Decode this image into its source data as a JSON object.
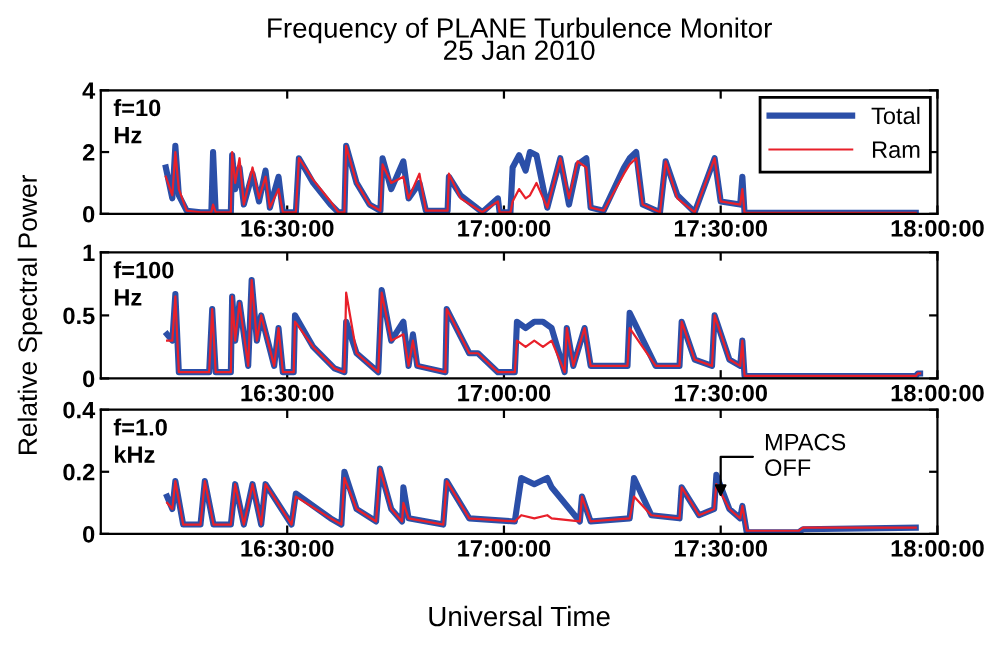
{
  "chart_data": [
    {
      "type": "line",
      "title": "Frequency of PLANE Turbulence Monitor",
      "subtitle": "25 Jan 2010",
      "annotations": [
        "f=10\nHz"
      ],
      "legend": "top right",
      "xlim": [
        16.07,
        18.0
      ],
      "ylim": [
        0,
        4
      ],
      "yticks": [
        0,
        2,
        4
      ],
      "xticks": [
        {
          "value": 16.5,
          "label": "16:30:00"
        },
        {
          "value": 17.0,
          "label": "17:00:00"
        },
        {
          "value": 17.5,
          "label": "17:30:00"
        },
        {
          "value": 18.0,
          "label": "18:00:00"
        }
      ],
      "x": [
        16.22,
        16.235,
        16.242,
        16.25,
        16.268,
        16.3,
        16.325,
        16.329,
        16.335,
        16.37,
        16.373,
        16.38,
        16.39,
        16.4,
        16.42,
        16.435,
        16.45,
        16.46,
        16.48,
        16.49,
        16.52,
        16.527,
        16.56,
        16.6,
        16.618,
        16.632,
        16.636,
        16.66,
        16.69,
        16.715,
        16.72,
        16.74,
        16.768,
        16.78,
        16.805,
        16.82,
        16.87,
        16.873,
        16.9,
        16.95,
        16.986,
        16.99,
        17.015,
        17.02,
        17.035,
        17.05,
        17.06,
        17.075,
        17.1,
        17.13,
        17.15,
        17.17,
        17.19,
        17.2,
        17.23,
        17.277,
        17.29,
        17.305,
        17.32,
        17.36,
        17.373,
        17.4,
        17.44,
        17.486,
        17.5,
        17.545,
        17.55,
        17.555,
        17.95
      ],
      "series": [
        {
          "name": "Total",
          "color": "#2b4fa8",
          "values": [
            1.5,
            0.5,
            2.2,
            0.6,
            0.1,
            0.05,
            0.05,
            2.0,
            0.05,
            0.05,
            1.9,
            0.8,
            1.5,
            0.3,
            1.3,
            0.4,
            1.4,
            0.2,
            1.2,
            0.05,
            0.05,
            1.8,
            1.0,
            0.3,
            0.05,
            0.05,
            2.2,
            1.0,
            0.3,
            0.1,
            1.8,
            0.8,
            1.7,
            0.5,
            1.0,
            0.1,
            0.1,
            1.2,
            0.6,
            0.05,
            0.5,
            0.05,
            0.05,
            1.5,
            1.9,
            1.4,
            2.0,
            1.9,
            0.2,
            1.8,
            0.3,
            1.6,
            1.8,
            0.2,
            0.1,
            1.5,
            1.8,
            2.0,
            0.3,
            0.05,
            1.7,
            0.6,
            0.05,
            1.8,
            0.4,
            0.3,
            1.2,
            0.03,
            0.03
          ]
        },
        {
          "name": "Ram",
          "color": "#e8202a",
          "values": [
            1.2,
            0.6,
            2.0,
            0.8,
            0.1,
            0.05,
            0.05,
            0.3,
            0.05,
            0.05,
            2.0,
            1.0,
            1.8,
            0.3,
            1.5,
            0.5,
            1.2,
            0.2,
            0.8,
            0.05,
            0.05,
            1.8,
            1.1,
            0.4,
            0.05,
            0.05,
            2.2,
            1.0,
            0.3,
            0.1,
            1.6,
            1.0,
            1.2,
            0.5,
            1.3,
            0.1,
            0.1,
            1.3,
            0.5,
            0.05,
            0.4,
            0.05,
            0.05,
            0.4,
            0.8,
            0.5,
            0.6,
            1.0,
            0.2,
            1.8,
            0.5,
            1.7,
            1.5,
            0.2,
            0.1,
            1.3,
            1.6,
            1.8,
            0.3,
            0.05,
            1.7,
            0.5,
            0.05,
            1.8,
            0.4,
            0.3,
            0.8,
            0.03,
            0.03
          ]
        }
      ]
    },
    {
      "type": "line",
      "ylabel": "Relative Spectral Power",
      "annotations": [
        "f=100\nHz"
      ],
      "xlim": [
        16.07,
        18.0
      ],
      "ylim": [
        0,
        1
      ],
      "yticks": [
        0,
        0.5,
        1
      ],
      "xticks": [
        {
          "value": 16.5,
          "label": "16:30:00"
        },
        {
          "value": 17.0,
          "label": "17:00:00"
        },
        {
          "value": 17.5,
          "label": "17:30:00"
        },
        {
          "value": 18.0,
          "label": "18:00:00"
        }
      ],
      "x": [
        16.223,
        16.235,
        16.242,
        16.25,
        16.32,
        16.327,
        16.335,
        16.37,
        16.373,
        16.38,
        16.39,
        16.41,
        16.418,
        16.43,
        16.44,
        16.47,
        16.48,
        16.49,
        16.515,
        16.518,
        16.56,
        16.609,
        16.632,
        16.636,
        16.66,
        16.71,
        16.718,
        16.74,
        16.768,
        16.78,
        16.79,
        16.8,
        16.865,
        16.868,
        16.92,
        16.94,
        16.986,
        17.025,
        17.03,
        17.05,
        17.07,
        17.09,
        17.11,
        17.14,
        17.145,
        17.16,
        17.186,
        17.2,
        17.285,
        17.29,
        17.35,
        17.405,
        17.41,
        17.44,
        17.48,
        17.486,
        17.52,
        17.545,
        17.55,
        17.555,
        17.95,
        17.955,
        17.96
      ],
      "series": [
        {
          "color": "#2b4fa8",
          "values": [
            0.35,
            0.3,
            0.67,
            0.05,
            0.05,
            0.55,
            0.05,
            0.05,
            0.65,
            0.3,
            0.6,
            0.1,
            0.78,
            0.3,
            0.5,
            0.1,
            0.4,
            0.05,
            0.05,
            0.5,
            0.25,
            0.08,
            0.05,
            0.45,
            0.2,
            0.05,
            0.7,
            0.3,
            0.45,
            0.1,
            0.35,
            0.1,
            0.05,
            0.55,
            0.2,
            0.2,
            0.05,
            0.05,
            0.45,
            0.4,
            0.45,
            0.45,
            0.4,
            0.05,
            0.4,
            0.1,
            0.4,
            0.1,
            0.1,
            0.52,
            0.1,
            0.1,
            0.45,
            0.15,
            0.1,
            0.5,
            0.15,
            0.1,
            0.3,
            0.02,
            0.02,
            0.04,
            0.04
          ]
        },
        {
          "color": "#e8202a",
          "values": [
            0.3,
            0.3,
            0.65,
            0.05,
            0.05,
            0.55,
            0.05,
            0.05,
            0.65,
            0.3,
            0.6,
            0.1,
            0.78,
            0.3,
            0.5,
            0.1,
            0.4,
            0.05,
            0.05,
            0.45,
            0.25,
            0.08,
            0.05,
            0.68,
            0.2,
            0.05,
            0.68,
            0.3,
            0.35,
            0.1,
            0.3,
            0.1,
            0.05,
            0.55,
            0.2,
            0.2,
            0.05,
            0.05,
            0.3,
            0.25,
            0.3,
            0.25,
            0.3,
            0.05,
            0.4,
            0.1,
            0.4,
            0.1,
            0.1,
            0.4,
            0.1,
            0.1,
            0.45,
            0.15,
            0.1,
            0.5,
            0.15,
            0.1,
            0.3,
            0.02,
            0.02,
            0.04,
            0.04
          ]
        }
      ]
    },
    {
      "type": "line",
      "xlabel": "Universal Time",
      "annotations": [
        "f=1.0\nkHz",
        {
          "text": "MPACS\nOFF",
          "x": 17.5,
          "y": 0.1
        }
      ],
      "xlim": [
        16.07,
        18.0
      ],
      "ylim": [
        0,
        0.4
      ],
      "yticks": [
        0,
        0.2,
        0.4
      ],
      "xticks": [
        {
          "value": 16.5,
          "label": "16:30:00"
        },
        {
          "value": 17.0,
          "label": "17:00:00"
        },
        {
          "value": 17.5,
          "label": "17:30:00"
        },
        {
          "value": 18.0,
          "label": "18:00:00"
        }
      ],
      "x": [
        16.223,
        16.235,
        16.242,
        16.26,
        16.3,
        16.31,
        16.33,
        16.37,
        16.38,
        16.4,
        16.42,
        16.44,
        16.45,
        16.51,
        16.52,
        16.6,
        16.625,
        16.632,
        16.66,
        16.705,
        16.714,
        16.74,
        16.765,
        16.768,
        16.78,
        16.86,
        16.868,
        16.92,
        17.025,
        17.04,
        17.07,
        17.1,
        17.11,
        17.175,
        17.18,
        17.2,
        17.29,
        17.3,
        17.34,
        17.405,
        17.41,
        17.45,
        17.485,
        17.49,
        17.52,
        17.545,
        17.55,
        17.56,
        17.68,
        17.69,
        17.95
      ],
      "series": [
        {
          "color": "#2b4fa8",
          "values": [
            0.12,
            0.08,
            0.17,
            0.03,
            0.03,
            0.17,
            0.03,
            0.03,
            0.16,
            0.03,
            0.16,
            0.03,
            0.16,
            0.03,
            0.13,
            0.05,
            0.03,
            0.2,
            0.08,
            0.04,
            0.21,
            0.08,
            0.04,
            0.15,
            0.05,
            0.03,
            0.17,
            0.05,
            0.04,
            0.18,
            0.16,
            0.18,
            0.15,
            0.04,
            0.12,
            0.04,
            0.05,
            0.18,
            0.06,
            0.05,
            0.15,
            0.06,
            0.08,
            0.19,
            0.08,
            0.05,
            0.09,
            0.005,
            0.005,
            0.015,
            0.02
          ]
        },
        {
          "color": "#e8202a",
          "values": [
            0.1,
            0.08,
            0.17,
            0.03,
            0.03,
            0.17,
            0.03,
            0.03,
            0.16,
            0.03,
            0.16,
            0.03,
            0.16,
            0.03,
            0.12,
            0.05,
            0.03,
            0.18,
            0.08,
            0.04,
            0.21,
            0.08,
            0.04,
            0.1,
            0.05,
            0.03,
            0.17,
            0.05,
            0.04,
            0.06,
            0.05,
            0.06,
            0.05,
            0.04,
            0.12,
            0.04,
            0.05,
            0.12,
            0.06,
            0.05,
            0.15,
            0.06,
            0.08,
            0.16,
            0.08,
            0.05,
            0.09,
            0.01,
            0.01,
            0.02,
            0.02
          ]
        }
      ]
    }
  ]
}
